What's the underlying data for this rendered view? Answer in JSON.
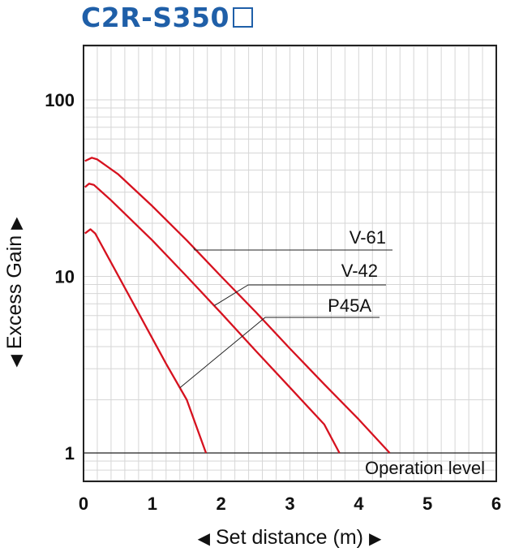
{
  "chart_data": {
    "type": "line",
    "title": "C2R-S350",
    "xlabel": "Set distance (m)",
    "ylabel": "Excess Gain",
    "xlim": [
      0,
      6
    ],
    "ylim": [
      0.6,
      180
    ],
    "y_scale": "log",
    "x_ticks": [
      "0",
      "1",
      "2",
      "3",
      "4",
      "5",
      "6"
    ],
    "y_ticks": [
      "1",
      "10",
      "100"
    ],
    "grid": true,
    "series": [
      {
        "name": "V-61",
        "color": "#d6121f",
        "points": [
          [
            0.02,
            45
          ],
          [
            0.12,
            47
          ],
          [
            0.2,
            46
          ],
          [
            0.5,
            38
          ],
          [
            1.0,
            25
          ],
          [
            1.5,
            16
          ],
          [
            2.0,
            10
          ],
          [
            2.5,
            6.3
          ],
          [
            3.0,
            3.9
          ],
          [
            3.5,
            2.45
          ],
          [
            4.0,
            1.55
          ],
          [
            4.4,
            1.05
          ],
          [
            4.45,
            1.0
          ]
        ]
      },
      {
        "name": "V-42",
        "color": "#d6121f",
        "points": [
          [
            0.02,
            32
          ],
          [
            0.08,
            33.5
          ],
          [
            0.15,
            33
          ],
          [
            0.4,
            27
          ],
          [
            1.0,
            16
          ],
          [
            1.5,
            10
          ],
          [
            2.0,
            6.2
          ],
          [
            2.5,
            3.8
          ],
          [
            3.0,
            2.35
          ],
          [
            3.5,
            1.45
          ],
          [
            3.72,
            1.0
          ]
        ]
      },
      {
        "name": "P45A",
        "color": "#d6121f",
        "points": [
          [
            0.02,
            17.5
          ],
          [
            0.1,
            18.5
          ],
          [
            0.17,
            17.5
          ],
          [
            0.4,
            12
          ],
          [
            0.8,
            6.2
          ],
          [
            1.2,
            3.2
          ],
          [
            1.5,
            2.0
          ],
          [
            1.78,
            1.0
          ]
        ]
      }
    ],
    "annotations": {
      "operation_level": {
        "text": "Operation level",
        "y": 1
      }
    }
  },
  "labels": {
    "title": "C2R-S350",
    "ylabel": "Excess Gain",
    "xlabel": "Set distance (m)",
    "operation_level": "Operation level",
    "series_v61": "V-61",
    "series_v42": "V-42",
    "series_p45a": "P45A",
    "arrow_left": "◀",
    "arrow_right": "▶",
    "arrow_down": "◀",
    "arrow_up": "▶"
  }
}
